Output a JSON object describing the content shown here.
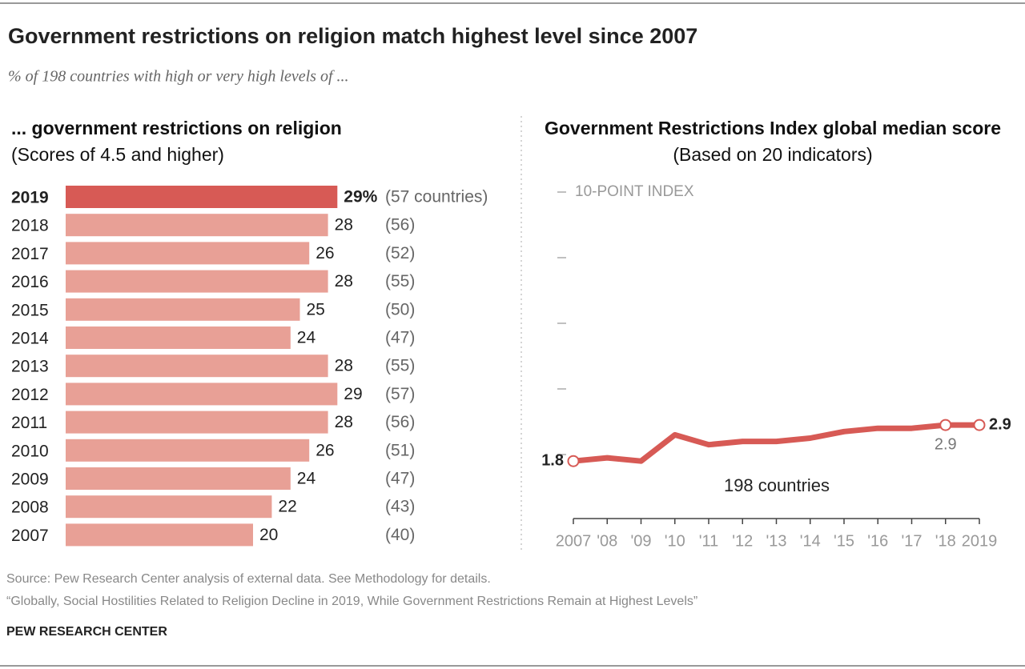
{
  "title": "Government restrictions on religion match highest level since 2007",
  "subtitle": "% of 198 countries with high or very high levels of ...",
  "source": "Source: Pew Research Center analysis of external data. See Methodology for details.",
  "note": "“Globally, Social Hostilities Related to Religion Decline in 2019, While Government Restrictions Remain at Highest Levels”",
  "credit": "PEW RESEARCH CENTER",
  "chart_data": [
    {
      "type": "bar",
      "orientation": "horizontal",
      "title": "... government restrictions on religion",
      "subtitle": "(Scores of 4.5 and higher)",
      "categories": [
        "2019",
        "2018",
        "2017",
        "2016",
        "2015",
        "2014",
        "2013",
        "2012",
        "2011",
        "2010",
        "2009",
        "2008",
        "2007"
      ],
      "values": [
        29,
        28,
        26,
        28,
        25,
        24,
        28,
        29,
        28,
        26,
        24,
        22,
        20
      ],
      "value_labels": [
        "29%",
        "28",
        "26",
        "28",
        "25",
        "24",
        "28",
        "29",
        "28",
        "26",
        "24",
        "22",
        "20"
      ],
      "count_labels": [
        "(57 countries)",
        "(56)",
        "(52)",
        "(55)",
        "(50)",
        "(47)",
        "(55)",
        "(57)",
        "(56)",
        "(51)",
        "(47)",
        "(43)",
        "(40)"
      ],
      "colors": [
        "#d75a55",
        "#e8a096",
        "#e8a096",
        "#e8a096",
        "#e8a096",
        "#e8a096",
        "#e8a096",
        "#e8a096",
        "#e8a096",
        "#e8a096",
        "#e8a096",
        "#e8a096",
        "#e8a096"
      ],
      "xlim": [
        0,
        30
      ]
    },
    {
      "type": "line",
      "title": "Government Restrictions Index global median score",
      "subtitle": "(Based on 20 indicators)",
      "categories": [
        "2007",
        "'08",
        "'09",
        "'10",
        "'11",
        "'12",
        "'13",
        "'14",
        "'15",
        "'16",
        "'17",
        "'18",
        "2019"
      ],
      "values": [
        1.8,
        1.9,
        1.8,
        2.6,
        2.3,
        2.4,
        2.4,
        2.5,
        2.7,
        2.8,
        2.8,
        2.9,
        2.9
      ],
      "color": "#d75a55",
      "ylim": [
        0,
        10
      ],
      "yticks": [
        {
          "value": 2,
          "label": null
        },
        {
          "value": 4,
          "label": null
        },
        {
          "value": 6,
          "label": null
        },
        {
          "value": 8,
          "label": null
        },
        {
          "value": 10,
          "label": "10-POINT INDEX"
        }
      ],
      "annotation": "198 countries"
    }
  ]
}
